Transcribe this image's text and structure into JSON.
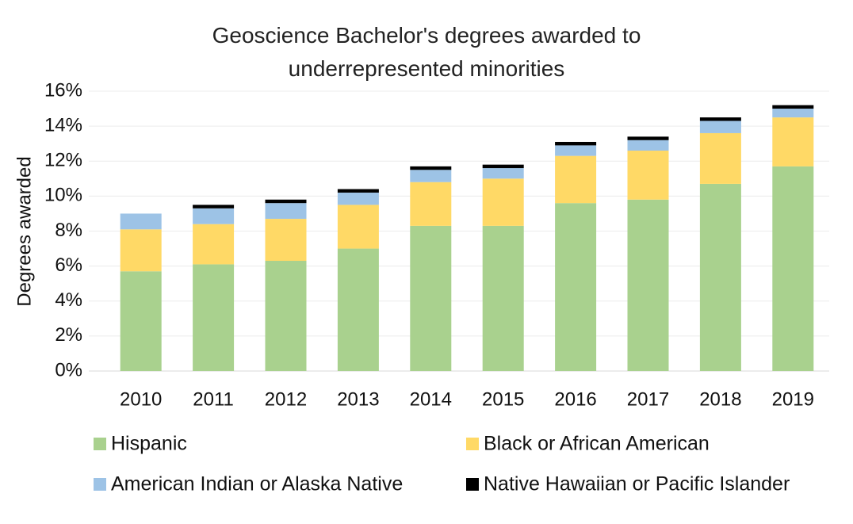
{
  "chart_data": {
    "type": "stacked-bar",
    "title": "Geoscience Bachelor's degrees awarded to underrepresented minorities",
    "y_label": "Degrees awarded",
    "categories": [
      "2010",
      "2011",
      "2012",
      "2013",
      "2014",
      "2015",
      "2016",
      "2017",
      "2018",
      "2019"
    ],
    "series": [
      {
        "name": "Hispanic",
        "color": "#a9d18e",
        "values": [
          5.7,
          6.1,
          6.3,
          7.0,
          8.3,
          8.3,
          9.6,
          9.8,
          10.7,
          11.7
        ]
      },
      {
        "name": "Black or African American",
        "color": "#ffd966",
        "values": [
          2.4,
          2.3,
          2.4,
          2.5,
          2.5,
          2.7,
          2.7,
          2.8,
          2.9,
          2.8
        ]
      },
      {
        "name": "American Indian or Alaska Native",
        "color": "#9dc3e6",
        "values": [
          0.9,
          0.9,
          0.9,
          0.7,
          0.7,
          0.6,
          0.6,
          0.6,
          0.7,
          0.5
        ]
      },
      {
        "name": "Native Hawaiian or Pacific Islander",
        "color": "#000000",
        "values": [
          0,
          0.2,
          0.2,
          0.2,
          0.2,
          0.2,
          0.2,
          0.2,
          0.2,
          0.2
        ]
      }
    ],
    "ylim": [
      0,
      16
    ],
    "yticks": [
      {
        "value": 0,
        "label": "0%"
      },
      {
        "value": 2,
        "label": "2%"
      },
      {
        "value": 4,
        "label": "4%"
      },
      {
        "value": 6,
        "label": "6%"
      },
      {
        "value": 8,
        "label": "8%"
      },
      {
        "value": 10,
        "label": "10%"
      },
      {
        "value": 12,
        "label": "12%"
      },
      {
        "value": 14,
        "label": "14%"
      },
      {
        "value": 16,
        "label": "16%"
      }
    ],
    "grid": true
  }
}
